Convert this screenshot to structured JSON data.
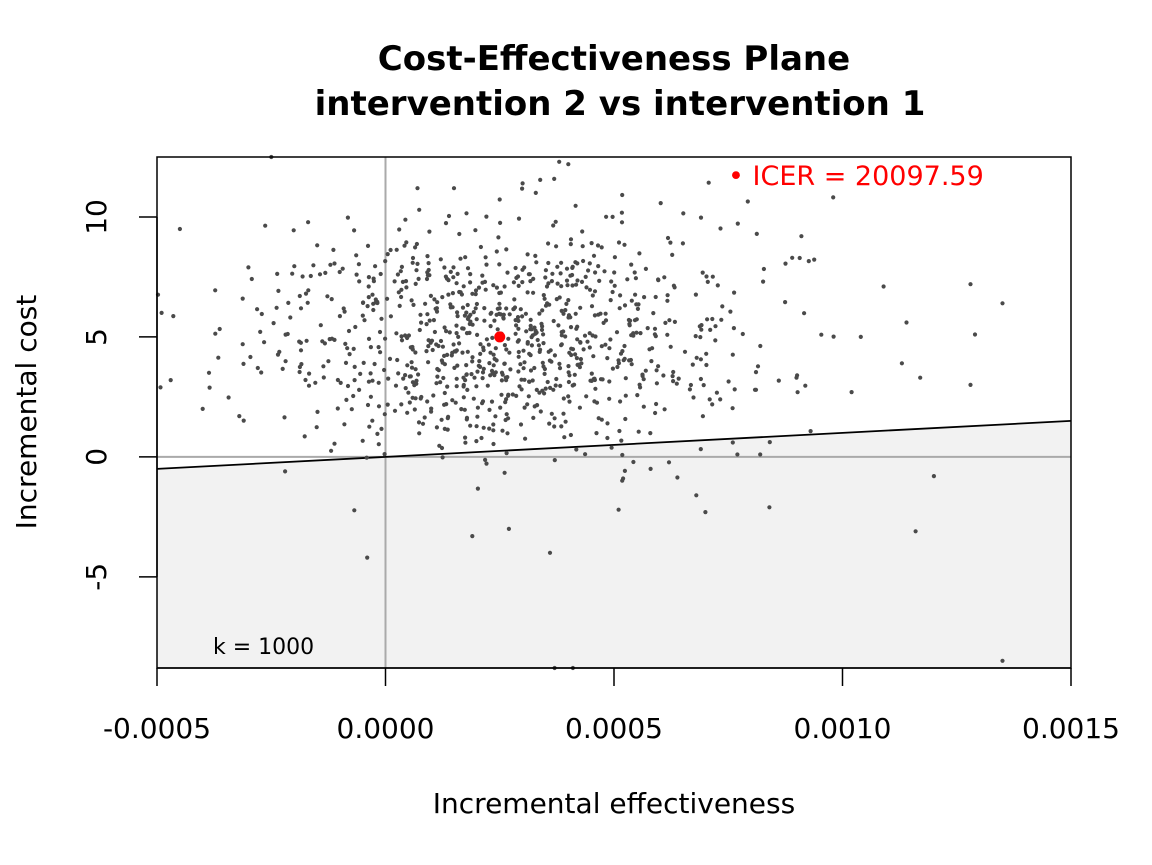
{
  "chart_data": {
    "type": "scatter",
    "title": [
      "Cost-Effectiveness Plane",
      "intervention 2 vs intervention 1"
    ],
    "xlabel": "Incremental effectiveness",
    "ylabel": "Incremental cost",
    "xlim": [
      -0.0005,
      0.0015
    ],
    "ylim": [
      -8.8,
      12.5
    ],
    "x_ticks": [
      -0.0005,
      0.0,
      0.0005,
      0.001,
      0.0015
    ],
    "x_tick_labels": [
      "-0.0005",
      "0.0000",
      "0.0005",
      "0.0010",
      "0.0015"
    ],
    "y_ticks": [
      -5,
      0,
      5,
      10
    ],
    "y_tick_labels": [
      "-5",
      "0",
      "5",
      "10"
    ],
    "wtp": {
      "k": 1000,
      "label": "k = 1000"
    },
    "icer": {
      "x": 0.00025,
      "y": 5.0,
      "value": 20097.59,
      "label": "• ICER = 20097.59"
    },
    "colors": {
      "points": "#4a4a4a",
      "icer": "#ff0000",
      "region": "#f2f2f2",
      "crosshair": "#aaaaaa",
      "wtp_line": "#000000"
    },
    "grid": false,
    "n_simulations": 1000,
    "cloud": {
      "mean_x": 0.00025,
      "sd_x": 0.00027,
      "mean_y": 5.0,
      "sd_y": 2.4,
      "seed": 1000
    },
    "outlier_points": [
      {
        "x": 0.00135,
        "y": -8.5
      },
      {
        "x": 0.0012,
        "y": -0.8
      },
      {
        "x": 0.00116,
        "y": -3.1
      },
      {
        "x": 0.00084,
        "y": -2.1
      },
      {
        "x": 0.0007,
        "y": -2.3
      },
      {
        "x": 0.00068,
        "y": -1.6
      },
      {
        "x": 0.00058,
        "y": -0.5
      },
      {
        "x": 0.00051,
        "y": -2.2
      },
      {
        "x": 0.00052,
        "y": -0.9
      },
      {
        "x": 0.00036,
        "y": -4.0
      },
      {
        "x": 0.00027,
        "y": -3.0
      },
      {
        "x": 0.00019,
        "y": -3.3
      },
      {
        "x": -4e-05,
        "y": -4.2
      },
      {
        "x": 0.00037,
        "y": -8.8
      },
      {
        "x": 0.00041,
        "y": -8.8
      },
      {
        "x": 0.00128,
        "y": 3.0
      },
      {
        "x": 0.00128,
        "y": 7.2
      },
      {
        "x": 0.00135,
        "y": 6.4
      },
      {
        "x": 0.00129,
        "y": 5.1
      },
      {
        "x": 0.00109,
        "y": 7.1
      },
      {
        "x": 0.00114,
        "y": 5.6
      },
      {
        "x": 0.00117,
        "y": 3.3
      },
      {
        "x": 0.00113,
        "y": 3.9
      },
      {
        "x": 0.00104,
        "y": 5.0
      },
      {
        "x": 0.00091,
        "y": 9.2
      },
      {
        "x": 0.00089,
        "y": 8.3
      },
      {
        "x": 0.00102,
        "y": 2.7
      },
      {
        "x": -0.00045,
        "y": 9.5
      },
      {
        "x": -0.00049,
        "y": 6.0
      },
      {
        "x": -0.00047,
        "y": 3.2
      },
      {
        "x": -0.00025,
        "y": 12.5
      },
      {
        "x": 0.00038,
        "y": 12.3
      },
      {
        "x": 0.0004,
        "y": 12.2
      },
      {
        "x": -0.0004,
        "y": 2.0
      },
      {
        "x": -0.00032,
        "y": 1.7
      },
      {
        "x": -0.0003,
        "y": 7.9
      },
      {
        "x": 0.00077,
        "y": 0.1
      },
      {
        "x": 0.00082,
        "y": 0.1
      },
      {
        "x": 0.00076,
        "y": 0.6
      },
      {
        "x": 7e-05,
        "y": 11.2
      },
      {
        "x": 0.00015,
        "y": 11.2
      },
      {
        "x": 0.0003,
        "y": 11.4
      }
    ]
  }
}
